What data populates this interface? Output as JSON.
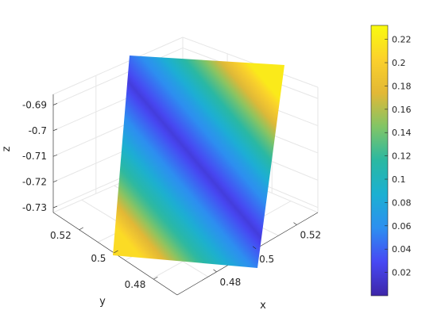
{
  "chart_data": {
    "type": "surface",
    "title": "",
    "xlabel": "x",
    "ylabel": "y",
    "zlabel": "z",
    "grid": true,
    "colormap": "parula",
    "colormap_stops": [
      "#3e26a8",
      "#4748f4",
      "#2d8ff0",
      "#1bb0d2",
      "#2ab8a2",
      "#81c566",
      "#e2b836",
      "#fbd12c",
      "#f9fb0e"
    ],
    "x_ticks": [
      "0.48",
      "0.5",
      "0.52"
    ],
    "y_ticks": [
      "0.48",
      "0.5",
      "0.52"
    ],
    "z_ticks": [
      "-0.69",
      "-0.7",
      "-0.71",
      "-0.72",
      "-0.73"
    ],
    "colorbar": {
      "range": [
        0.0,
        0.232
      ],
      "ticks": [
        "0.02",
        "0.04",
        "0.06",
        "0.08",
        "0.1",
        "0.12",
        "0.14",
        "0.16",
        "0.18",
        "0.2",
        "0.22"
      ]
    },
    "color_profile": {
      "description_values": [
        0.21,
        0.13,
        0.07,
        0.02,
        0.07,
        0.14,
        0.22
      ]
    }
  }
}
